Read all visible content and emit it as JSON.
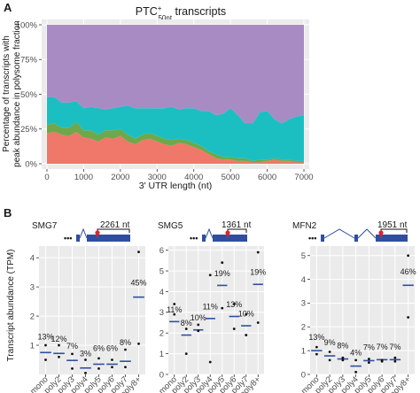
{
  "panel_a": {
    "letter": "A",
    "title_main": "PTC",
    "title_sup": "+",
    "title_sub": "50nt",
    "title_rest": " transcripts",
    "colors": {
      "purple": "#a98bc4",
      "teal": "#1bbfc2",
      "green": "#6ea84b",
      "salmon": "#f0786a",
      "panel_bg": "#ebebeb"
    }
  },
  "panel_b": {
    "letter": "B",
    "ylabel": "Transcript abundance (TPM)",
    "colors": {
      "mean_bar": "#2f4f9e",
      "point": "#111111",
      "marker": "#e8202a",
      "gene_box": "#2f4f9e"
    }
  },
  "chart_data": [
    {
      "type": "area",
      "stacked": true,
      "normalized": true,
      "xlabel": "3' UTR length (nt)",
      "ylabel_lines": [
        "Percentage of transcripts with",
        "peak abundance in polysome fraction"
      ],
      "xlim": [
        0,
        7000
      ],
      "ylim": [
        0,
        1
      ],
      "x_ticks": [
        0,
        1000,
        2000,
        3000,
        4000,
        5000,
        6000,
        7000
      ],
      "y_ticks": [
        0,
        0.25,
        0.5,
        0.75,
        1.0
      ],
      "y_tick_labels": [
        "0%",
        "25%",
        "50%",
        "75%",
        "100%"
      ],
      "x": [
        0,
        200,
        400,
        600,
        800,
        1000,
        1200,
        1400,
        1600,
        1800,
        2000,
        2200,
        2400,
        2600,
        2800,
        3000,
        3200,
        3400,
        3600,
        3800,
        4000,
        4200,
        4400,
        4600,
        4800,
        5000,
        5200,
        5400,
        5600,
        5800,
        6000,
        6200,
        6400,
        6600,
        6800,
        7000
      ],
      "series": [
        {
          "color": "#f0786a",
          "values": [
            0.22,
            0.23,
            0.21,
            0.2,
            0.23,
            0.19,
            0.18,
            0.16,
            0.19,
            0.18,
            0.2,
            0.16,
            0.14,
            0.17,
            0.18,
            0.16,
            0.14,
            0.13,
            0.15,
            0.14,
            0.12,
            0.1,
            0.07,
            0.04,
            0.03,
            0.03,
            0.02,
            0.02,
            0.01,
            0.01,
            0.02,
            0.03,
            0.02,
            0.02,
            0.01,
            0.01
          ]
        },
        {
          "color": "#6ea84b",
          "values": [
            0.06,
            0.06,
            0.05,
            0.06,
            0.07,
            0.05,
            0.06,
            0.05,
            0.05,
            0.06,
            0.05,
            0.05,
            0.04,
            0.04,
            0.04,
            0.04,
            0.04,
            0.04,
            0.03,
            0.03,
            0.03,
            0.03,
            0.02,
            0.03,
            0.02,
            0.02,
            0.02,
            0.02,
            0.01,
            0.02,
            0.01,
            0.01,
            0.01,
            0.01,
            0.01,
            0.01
          ]
        },
        {
          "color": "#1bbfc2",
          "values": [
            0.2,
            0.19,
            0.18,
            0.18,
            0.15,
            0.16,
            0.17,
            0.19,
            0.15,
            0.16,
            0.16,
            0.21,
            0.22,
            0.19,
            0.18,
            0.2,
            0.22,
            0.24,
            0.21,
            0.23,
            0.25,
            0.25,
            0.29,
            0.28,
            0.31,
            0.35,
            0.31,
            0.25,
            0.27,
            0.34,
            0.35,
            0.28,
            0.26,
            0.29,
            0.32,
            0.33
          ]
        },
        {
          "color": "#a98bc4",
          "values": [
            0.52,
            0.52,
            0.56,
            0.56,
            0.55,
            0.6,
            0.59,
            0.6,
            0.61,
            0.6,
            0.59,
            0.58,
            0.6,
            0.6,
            0.6,
            0.6,
            0.6,
            0.59,
            0.61,
            0.6,
            0.6,
            0.62,
            0.62,
            0.65,
            0.64,
            0.6,
            0.65,
            0.71,
            0.71,
            0.63,
            0.62,
            0.68,
            0.71,
            0.68,
            0.66,
            0.65
          ]
        }
      ]
    },
    {
      "type": "scatter",
      "title": "SMG7",
      "annotation": "2261 nt",
      "categories": [
        "mono",
        "poly2",
        "poly3",
        "poly4",
        "poly5",
        "poly6",
        "poly7",
        "poly8+"
      ],
      "ylim": [
        0,
        4.4
      ],
      "y_ticks": [
        1,
        2,
        3,
        4
      ],
      "means": [
        0.75,
        0.72,
        0.48,
        0.22,
        0.35,
        0.35,
        0.45,
        2.65
      ],
      "percent_labels": [
        "13%",
        "12%",
        "7%",
        "3%",
        "6%",
        "6%",
        "8%",
        "45%"
      ],
      "label_y": [
        1.2,
        1.12,
        0.88,
        0.62,
        0.8,
        0.8,
        1.0,
        3.05
      ],
      "points": [
        [
          0.5,
          1.0
        ],
        [
          0.6,
          1.0
        ],
        [
          0.2,
          0.7
        ],
        [
          0.05,
          0.5
        ],
        [
          0.2,
          0.55
        ],
        [
          0.25,
          0.5
        ],
        [
          0.25,
          0.85
        ],
        [
          1.05,
          4.2
        ]
      ]
    },
    {
      "type": "scatter",
      "title": "SMG5",
      "annotation": "1361 nt",
      "categories": [
        "mono",
        "poly2",
        "poly3",
        "poly4",
        "poly5",
        "poly6",
        "poly7",
        "poly8+"
      ],
      "ylim": [
        0,
        6.2
      ],
      "y_ticks": [
        0,
        1,
        2,
        3,
        4,
        5,
        6
      ],
      "means": [
        2.55,
        1.9,
        2.15,
        2.7,
        4.3,
        2.8,
        2.35,
        4.35
      ],
      "percent_labels": [
        "11%",
        "8%",
        "10%",
        "11%",
        "19%",
        "13%",
        "10%",
        "19%"
      ],
      "label_y": [
        3.0,
        2.35,
        2.6,
        3.15,
        4.75,
        3.25,
        2.8,
        4.8
      ],
      "points": [
        [
          2.9,
          3.4
        ],
        [
          1.0,
          2.2
        ],
        [
          2.1,
          2.4
        ],
        [
          0.6,
          4.8
        ],
        [
          3.2,
          5.4
        ],
        [
          2.2,
          3.4
        ],
        [
          1.9,
          2.9
        ],
        [
          2.5,
          5.9
        ]
      ]
    },
    {
      "type": "scatter",
      "title": "MFN2",
      "annotation": "1951 nt",
      "categories": [
        "mono",
        "poly2",
        "poly3",
        "poly4",
        "poly5",
        "poly6",
        "poly7",
        "poly8+"
      ],
      "ylim": [
        0,
        5.4
      ],
      "y_ticks": [
        0,
        1,
        2,
        3,
        4,
        5
      ],
      "means": [
        1.0,
        0.78,
        0.65,
        0.35,
        0.58,
        0.62,
        0.62,
        3.75
      ],
      "percent_labels": [
        "13%",
        "9%",
        "8%",
        "4%",
        "7%",
        "7%",
        "7%",
        "46%"
      ],
      "label_y": [
        1.45,
        1.22,
        1.1,
        0.8,
        1.02,
        1.05,
        1.05,
        4.2
      ],
      "points": [
        [
          0.85,
          1.15
        ],
        [
          0.6,
          0.95
        ],
        [
          0.6,
          0.7
        ],
        [
          0.1,
          0.6
        ],
        [
          0.5,
          0.65
        ],
        [
          0.55,
          0.6
        ],
        [
          0.55,
          0.7
        ],
        [
          2.4,
          5.0
        ]
      ]
    }
  ]
}
